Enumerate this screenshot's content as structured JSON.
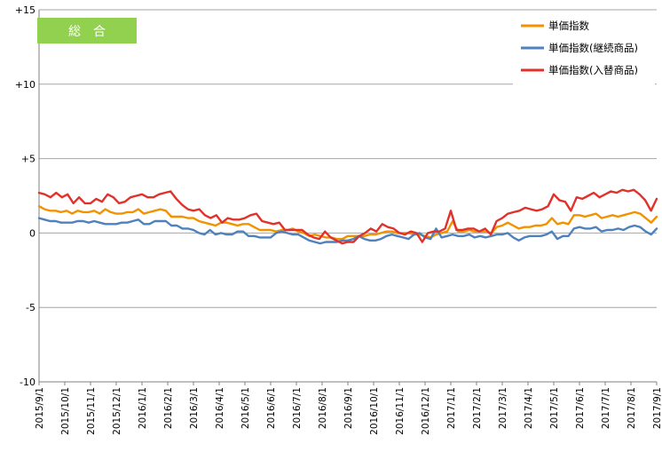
{
  "chart_data": {
    "type": "line",
    "title": "総　合",
    "xlabel": "",
    "ylabel": "",
    "ylim": [
      -10,
      15
    ],
    "y_ticks": [
      "+15",
      "+10",
      "+5",
      "0",
      "-5",
      "-10"
    ],
    "x_ticks": [
      "2015/9/1",
      "2015/10/1",
      "2015/11/1",
      "2015/12/1",
      "2016/1/1",
      "2016/2/1",
      "2016/3/1",
      "2016/4/1",
      "2016/5/1",
      "2016/6/1",
      "2016/7/1",
      "2016/8/1",
      "2016/9/1",
      "2016/10/1",
      "2016/11/1",
      "2016/12/1",
      "2017/1/1",
      "2017/2/1",
      "2017/3/1",
      "2017/4/1",
      "2017/5/1",
      "2017/6/1",
      "2017/7/1",
      "2017/8/1",
      "2017/9/1"
    ],
    "grid": "horizontal",
    "legend_position": "top-right",
    "series": [
      {
        "name": "単価指数",
        "color": "#f39200",
        "values": [
          1.8,
          1.6,
          1.5,
          1.5,
          1.4,
          1.5,
          1.3,
          1.5,
          1.4,
          1.4,
          1.5,
          1.3,
          1.6,
          1.4,
          1.3,
          1.3,
          1.4,
          1.4,
          1.6,
          1.3,
          1.4,
          1.5,
          1.6,
          1.5,
          1.1,
          1.1,
          1.1,
          1.0,
          1.0,
          0.8,
          0.7,
          0.6,
          0.5,
          0.7,
          0.7,
          0.6,
          0.5,
          0.6,
          0.6,
          0.4,
          0.2,
          0.2,
          0.2,
          0.1,
          0.2,
          0.2,
          0.3,
          0.1,
          0.0,
          -0.2,
          -0.1,
          -0.2,
          -0.3,
          -0.3,
          -0.4,
          -0.4,
          -0.2,
          -0.2,
          -0.2,
          -0.2,
          -0.1,
          -0.1,
          0.0,
          0.1,
          0.1,
          0.0,
          0.0,
          0.0,
          -0.1,
          -0.1,
          -0.2,
          -0.3,
          -0.1,
          0.0,
          0.1,
          0.8,
          0.1,
          0.1,
          0.2,
          0.1,
          0.1,
          0.1,
          0.0,
          0.4,
          0.5,
          0.7,
          0.5,
          0.3,
          0.4,
          0.4,
          0.5,
          0.5,
          0.6,
          1.0,
          0.6,
          0.7,
          0.6,
          1.2,
          1.2,
          1.1,
          1.2,
          1.3,
          1.0,
          1.1,
          1.2,
          1.1,
          1.2,
          1.3,
          1.4,
          1.3,
          1.0,
          0.7,
          1.1
        ]
      },
      {
        "name": "単価指数(継続商品)",
        "color": "#4f81bd",
        "values": [
          1.0,
          0.9,
          0.8,
          0.8,
          0.7,
          0.7,
          0.7,
          0.8,
          0.8,
          0.7,
          0.8,
          0.7,
          0.6,
          0.6,
          0.6,
          0.7,
          0.7,
          0.8,
          0.9,
          0.6,
          0.6,
          0.8,
          0.8,
          0.8,
          0.5,
          0.5,
          0.3,
          0.3,
          0.2,
          0.0,
          -0.1,
          0.2,
          -0.1,
          0.0,
          -0.1,
          -0.1,
          0.1,
          0.1,
          -0.2,
          -0.2,
          -0.3,
          -0.3,
          -0.3,
          0.0,
          0.1,
          0.0,
          -0.1,
          -0.1,
          -0.3,
          -0.5,
          -0.6,
          -0.7,
          -0.6,
          -0.6,
          -0.6,
          -0.5,
          -0.5,
          -0.4,
          -0.2,
          -0.4,
          -0.5,
          -0.5,
          -0.4,
          -0.2,
          -0.1,
          -0.2,
          -0.3,
          -0.4,
          -0.1,
          0.0,
          -0.3,
          -0.4,
          0.3,
          -0.3,
          -0.2,
          -0.1,
          -0.2,
          -0.2,
          -0.1,
          -0.3,
          -0.2,
          -0.3,
          -0.2,
          -0.1,
          -0.1,
          0.0,
          -0.3,
          -0.5,
          -0.3,
          -0.2,
          -0.2,
          -0.2,
          -0.1,
          0.1,
          -0.4,
          -0.2,
          -0.2,
          0.3,
          0.4,
          0.3,
          0.3,
          0.4,
          0.1,
          0.2,
          0.2,
          0.3,
          0.2,
          0.4,
          0.5,
          0.4,
          0.1,
          -0.1,
          0.3
        ]
      },
      {
        "name": "単価指数(入替商品)",
        "color": "#e0322b",
        "values": [
          2.7,
          2.6,
          2.4,
          2.7,
          2.4,
          2.6,
          2.0,
          2.4,
          2.0,
          2.0,
          2.3,
          2.1,
          2.6,
          2.4,
          2.0,
          2.1,
          2.4,
          2.5,
          2.6,
          2.4,
          2.4,
          2.6,
          2.7,
          2.8,
          2.3,
          1.9,
          1.6,
          1.5,
          1.6,
          1.2,
          1.0,
          1.2,
          0.7,
          1.0,
          0.9,
          0.9,
          1.0,
          1.2,
          1.3,
          0.8,
          0.7,
          0.6,
          0.7,
          0.2,
          0.2,
          0.2,
          0.2,
          -0.1,
          -0.3,
          -0.4,
          0.1,
          -0.3,
          -0.5,
          -0.7,
          -0.6,
          -0.6,
          -0.2,
          0.0,
          0.3,
          0.1,
          0.6,
          0.4,
          0.3,
          0.0,
          -0.1,
          0.1,
          0.0,
          -0.6,
          0.0,
          0.1,
          0.1,
          0.3,
          1.5,
          0.2,
          0.2,
          0.3,
          0.3,
          0.1,
          0.3,
          -0.1,
          0.8,
          1.0,
          1.3,
          1.4,
          1.5,
          1.7,
          1.6,
          1.5,
          1.6,
          1.8,
          2.6,
          2.2,
          2.1,
          1.5,
          2.4,
          2.3,
          2.5,
          2.7,
          2.4,
          2.6,
          2.8,
          2.7,
          2.9,
          2.8,
          2.9,
          2.6,
          2.2,
          1.5,
          2.3
        ]
      }
    ]
  }
}
